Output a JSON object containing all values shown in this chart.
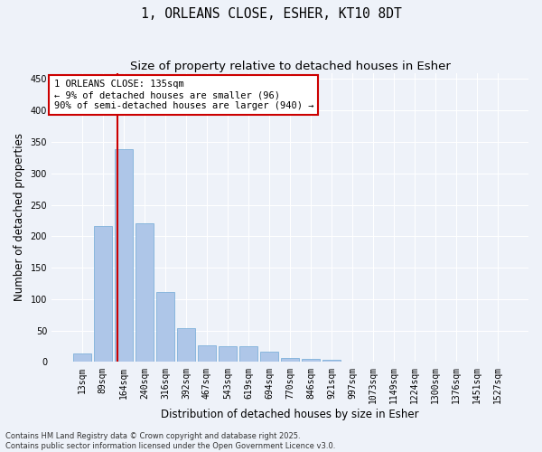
{
  "title": "1, ORLEANS CLOSE, ESHER, KT10 8DT",
  "subtitle": "Size of property relative to detached houses in Esher",
  "xlabel": "Distribution of detached houses by size in Esher",
  "ylabel": "Number of detached properties",
  "categories": [
    "13sqm",
    "89sqm",
    "164sqm",
    "240sqm",
    "316sqm",
    "392sqm",
    "467sqm",
    "543sqm",
    "619sqm",
    "694sqm",
    "770sqm",
    "846sqm",
    "921sqm",
    "997sqm",
    "1073sqm",
    "1149sqm",
    "1224sqm",
    "1300sqm",
    "1376sqm",
    "1451sqm",
    "1527sqm"
  ],
  "values": [
    14,
    217,
    338,
    220,
    112,
    54,
    26,
    25,
    25,
    16,
    7,
    5,
    3,
    1,
    0,
    0,
    0,
    0,
    1,
    0,
    1
  ],
  "bar_color": "#aec6e8",
  "bar_edge_color": "#6fa8d6",
  "vline_x_index": 1.72,
  "vline_color": "#cc0000",
  "annotation_text": "1 ORLEANS CLOSE: 135sqm\n← 9% of detached houses are smaller (96)\n90% of semi-detached houses are larger (940) →",
  "annotation_box_color": "#ffffff",
  "annotation_box_edge_color": "#cc0000",
  "ylim": [
    0,
    460
  ],
  "yticks": [
    0,
    50,
    100,
    150,
    200,
    250,
    300,
    350,
    400,
    450
  ],
  "background_color": "#eef2f9",
  "grid_color": "#ffffff",
  "footer_text": "Contains HM Land Registry data © Crown copyright and database right 2025.\nContains public sector information licensed under the Open Government Licence v3.0.",
  "title_fontsize": 10.5,
  "subtitle_fontsize": 9.5,
  "axis_label_fontsize": 8.5,
  "tick_fontsize": 7,
  "annotation_fontsize": 7.5,
  "footer_fontsize": 6
}
